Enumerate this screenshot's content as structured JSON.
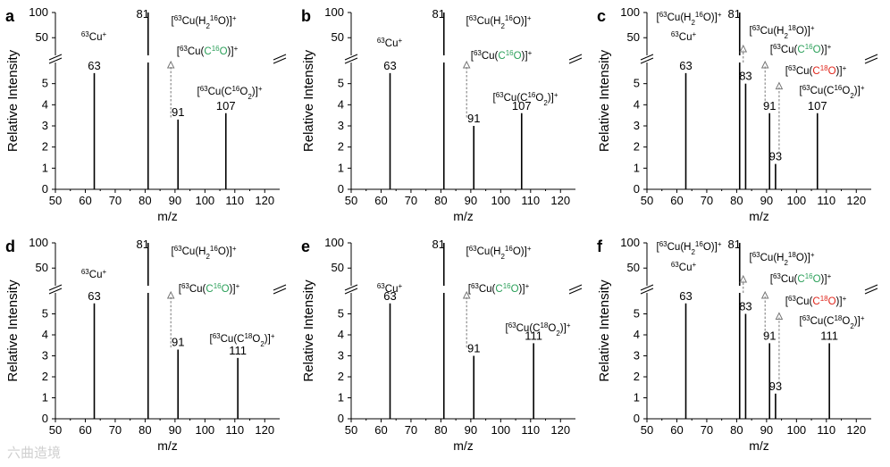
{
  "figure": {
    "watermark": "六曲造境"
  },
  "chart_data": [
    {
      "label": "a",
      "type": "bar",
      "xlabel": "m/z",
      "ylabel": "Relative Intensity",
      "xlim": [
        50,
        125
      ],
      "upper_ylim": [
        0,
        100
      ],
      "lower_ylim": [
        0,
        6
      ],
      "xticks": [
        50,
        60,
        70,
        80,
        90,
        100,
        110,
        120
      ],
      "upper_yticks": [
        50,
        100
      ],
      "lower_yticks": [
        0,
        1,
        2,
        3,
        4,
        5
      ],
      "peaks": [
        {
          "mz": 63,
          "value": 5.5,
          "label": "63"
        },
        {
          "mz": 81,
          "value": 100,
          "label": "81"
        },
        {
          "mz": 91,
          "value": 3.3,
          "label": "91"
        },
        {
          "mz": 107,
          "value": 3.6,
          "label": "107"
        }
      ],
      "annotations": [
        {
          "text": "63Cu+",
          "anchor": 63
        },
        {
          "text": "[63Cu(H216O)]+",
          "anchor": 81,
          "ion": "H2O16"
        },
        {
          "text": "[63Cu(C16O)]+",
          "anchor": 91,
          "ion": "CO16"
        },
        {
          "text": "[63Cu(C16O2)]+",
          "anchor": 107,
          "ion": "CO2_16"
        }
      ],
      "arrows": [
        {
          "mz": 88.6,
          "from": 3.4,
          "to": 6
        }
      ]
    },
    {
      "label": "b",
      "type": "bar",
      "xlabel": "m/z",
      "ylabel": "Relative Intensity",
      "xlim": [
        50,
        125
      ],
      "upper_ylim": [
        0,
        100
      ],
      "lower_ylim": [
        0,
        6
      ],
      "xticks": [
        50,
        60,
        70,
        80,
        90,
        100,
        110,
        120
      ],
      "upper_yticks": [
        50,
        100
      ],
      "lower_yticks": [
        0,
        1,
        2,
        3,
        4,
        5
      ],
      "peaks": [
        {
          "mz": 63,
          "value": 5.5,
          "label": "63"
        },
        {
          "mz": 81,
          "value": 100,
          "label": "81"
        },
        {
          "mz": 91,
          "value": 3.0,
          "label": "91"
        },
        {
          "mz": 107,
          "value": 3.6,
          "label": "107"
        }
      ],
      "annotations": [
        {
          "text": "63Cu+",
          "anchor": 63
        },
        {
          "text": "[63Cu(H216O)]+",
          "anchor": 81,
          "ion": "H2O16"
        },
        {
          "text": "[63Cu(C16O)]+",
          "anchor": 91,
          "ion": "CO16"
        },
        {
          "text": "[63Cu(C16O2)]+",
          "anchor": 107,
          "ion": "CO2_16"
        }
      ],
      "arrows": [
        {
          "mz": 88.6,
          "from": 3.4,
          "to": 6
        }
      ]
    },
    {
      "label": "c",
      "type": "bar",
      "xlabel": "m/z",
      "ylabel": "Relative Intensity",
      "xlim": [
        50,
        125
      ],
      "upper_ylim": [
        0,
        100
      ],
      "lower_ylim": [
        0,
        6
      ],
      "xticks": [
        50,
        60,
        70,
        80,
        90,
        100,
        110,
        120
      ],
      "upper_yticks": [
        50,
        100
      ],
      "lower_yticks": [
        0,
        1,
        2,
        3,
        4,
        5
      ],
      "peaks": [
        {
          "mz": 63,
          "value": 5.5,
          "label": "63"
        },
        {
          "mz": 81,
          "value": 100,
          "label": "81"
        },
        {
          "mz": 83,
          "value": 5.0,
          "label": "83"
        },
        {
          "mz": 91,
          "value": 3.6,
          "label": "91"
        },
        {
          "mz": 93,
          "value": 1.2,
          "label": "93"
        },
        {
          "mz": 107,
          "value": 3.6,
          "label": "107"
        }
      ],
      "annotations": [
        {
          "text": "[63Cu(H216O)]+",
          "anchor": 81,
          "ion": "H2O16"
        },
        {
          "text": "63Cu+",
          "anchor": 63
        },
        {
          "text": "[63Cu(H218O)]+",
          "anchor": 83,
          "ion": "H2O18"
        },
        {
          "text": "[63Cu(C16O)]+",
          "anchor": 91,
          "ion": "CO16"
        },
        {
          "text": "[63Cu(C18O)]+",
          "anchor": 93,
          "ion": "CO18"
        },
        {
          "text": "[63Cu(C16O2)]+",
          "anchor": 107,
          "ion": "CO2_16"
        }
      ],
      "arrows": [
        {
          "mz": 82.2,
          "from": 6,
          "to": 6.5
        },
        {
          "mz": 89.5,
          "from": 4.0,
          "to": 6
        },
        {
          "mz": 94.2,
          "from": 1.5,
          "to": 5
        }
      ]
    },
    {
      "label": "d",
      "type": "bar",
      "xlabel": "m/z",
      "ylabel": "Relative Intensity",
      "xlim": [
        50,
        125
      ],
      "upper_ylim": [
        0,
        100
      ],
      "lower_ylim": [
        0,
        6
      ],
      "xticks": [
        50,
        60,
        70,
        80,
        90,
        100,
        110,
        120
      ],
      "upper_yticks": [
        50,
        100
      ],
      "lower_yticks": [
        0,
        1,
        2,
        3,
        4,
        5
      ],
      "peaks": [
        {
          "mz": 63,
          "value": 5.5,
          "label": "63"
        },
        {
          "mz": 81,
          "value": 100,
          "label": "81"
        },
        {
          "mz": 91,
          "value": 3.3,
          "label": "91"
        },
        {
          "mz": 111,
          "value": 2.9,
          "label": "111"
        }
      ],
      "annotations": [
        {
          "text": "63Cu+",
          "anchor": 63
        },
        {
          "text": "[63Cu(H216O)]+",
          "anchor": 81,
          "ion": "H2O16"
        },
        {
          "text": "[63Cu(C16O)]+",
          "anchor": 91,
          "ion": "CO16"
        },
        {
          "text": "[63Cu(C18O2)]+",
          "anchor": 111,
          "ion": "CO2_18"
        }
      ],
      "arrows": [
        {
          "mz": 88.6,
          "from": 3.4,
          "to": 6
        }
      ]
    },
    {
      "label": "e",
      "type": "bar",
      "xlabel": "m/z",
      "ylabel": "Relative Intensity",
      "xlim": [
        50,
        125
      ],
      "upper_ylim": [
        0,
        100
      ],
      "lower_ylim": [
        0,
        6
      ],
      "xticks": [
        50,
        60,
        70,
        80,
        90,
        100,
        110,
        120
      ],
      "upper_yticks": [
        50,
        100
      ],
      "lower_yticks": [
        0,
        1,
        2,
        3,
        4,
        5
      ],
      "peaks": [
        {
          "mz": 63,
          "value": 5.5,
          "label": "63"
        },
        {
          "mz": 81,
          "value": 100,
          "label": "81"
        },
        {
          "mz": 91,
          "value": 3.0,
          "label": "91"
        },
        {
          "mz": 111,
          "value": 3.6,
          "label": "111"
        }
      ],
      "annotations": [
        {
          "text": "63Cu+",
          "anchor": 63
        },
        {
          "text": "[63Cu(H216O)]+",
          "anchor": 81,
          "ion": "H2O16"
        },
        {
          "text": "[63Cu(C16O)]+",
          "anchor": 91,
          "ion": "CO16"
        },
        {
          "text": "[63Cu(C18O2)]+",
          "anchor": 111,
          "ion": "CO2_18"
        }
      ],
      "arrows": [
        {
          "mz": 88.6,
          "from": 3.4,
          "to": 6
        }
      ]
    },
    {
      "label": "f",
      "type": "bar",
      "xlabel": "m/z",
      "ylabel": "Relative Intensity",
      "xlim": [
        50,
        125
      ],
      "upper_ylim": [
        0,
        100
      ],
      "lower_ylim": [
        0,
        6
      ],
      "xticks": [
        50,
        60,
        70,
        80,
        90,
        100,
        110,
        120
      ],
      "upper_yticks": [
        50,
        100
      ],
      "lower_yticks": [
        0,
        1,
        2,
        3,
        4,
        5
      ],
      "peaks": [
        {
          "mz": 63,
          "value": 5.5,
          "label": "63"
        },
        {
          "mz": 81,
          "value": 100,
          "label": "81"
        },
        {
          "mz": 83,
          "value": 5.0,
          "label": "83"
        },
        {
          "mz": 91,
          "value": 3.6,
          "label": "91"
        },
        {
          "mz": 93,
          "value": 1.2,
          "label": "93"
        },
        {
          "mz": 111,
          "value": 3.6,
          "label": "111"
        }
      ],
      "annotations": [
        {
          "text": "[63Cu(H216O)]+",
          "anchor": 81,
          "ion": "H2O16"
        },
        {
          "text": "63Cu+",
          "anchor": 63
        },
        {
          "text": "[63Cu(H218O)]+",
          "anchor": 83,
          "ion": "H2O18"
        },
        {
          "text": "[63Cu(C16O)]+",
          "anchor": 91,
          "ion": "CO16"
        },
        {
          "text": "[63Cu(C18O)]+",
          "anchor": 93,
          "ion": "CO18"
        },
        {
          "text": "[63Cu(C18O2)]+",
          "anchor": 111,
          "ion": "CO2_18"
        }
      ],
      "arrows": [
        {
          "mz": 82.2,
          "from": 6,
          "to": 6.5
        },
        {
          "mz": 89.5,
          "from": 4.0,
          "to": 6
        },
        {
          "mz": 94.2,
          "from": 1.5,
          "to": 5
        }
      ]
    }
  ],
  "colors": {
    "c16o": "#2ca05a",
    "c18o": "#e0251b",
    "axis": "#000000",
    "arrow": "#777777"
  }
}
